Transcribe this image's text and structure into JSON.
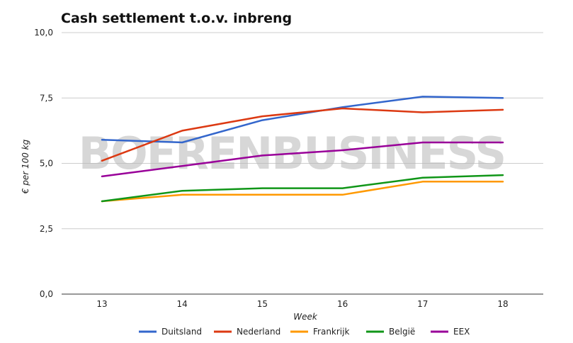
{
  "watermark": "BOERENBUSINESS",
  "chart_data": {
    "type": "line",
    "title": "Cash settlement t.o.v. inbreng",
    "xlabel": "Week",
    "ylabel": "€ per 100 kg",
    "categories": [
      "13",
      "14",
      "15",
      "16",
      "17",
      "18"
    ],
    "ylim": [
      0,
      10
    ],
    "yticks": [
      "0,0",
      "2,5",
      "5,0",
      "7,5",
      "10,0"
    ],
    "grid": true,
    "legend_position": "bottom",
    "series": [
      {
        "name": "Duitsland",
        "color": "#3366cc",
        "values": [
          5.9,
          5.8,
          6.65,
          7.15,
          7.55,
          7.5
        ]
      },
      {
        "name": "Nederland",
        "color": "#dc3912",
        "values": [
          5.1,
          6.25,
          6.8,
          7.1,
          6.95,
          7.05
        ]
      },
      {
        "name": "Frankrijk",
        "color": "#ff9900",
        "values": [
          3.55,
          3.8,
          3.8,
          3.8,
          4.3,
          4.3
        ]
      },
      {
        "name": "België",
        "color": "#109618",
        "values": [
          3.55,
          3.95,
          4.05,
          4.05,
          4.45,
          4.55
        ]
      },
      {
        "name": "EEX",
        "color": "#990099",
        "values": [
          4.5,
          4.9,
          5.3,
          5.5,
          5.8,
          5.8
        ]
      }
    ]
  }
}
